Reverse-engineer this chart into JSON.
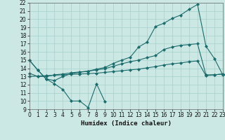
{
  "title": "",
  "xlabel": "Humidex (Indice chaleur)",
  "bg_color": "#cce8e5",
  "grid_color": "#aad4d0",
  "line_color": "#1a6b6b",
  "xlim": [
    0,
    23
  ],
  "ylim": [
    9,
    22
  ],
  "xticks": [
    0,
    1,
    2,
    3,
    4,
    5,
    6,
    7,
    8,
    9,
    10,
    11,
    12,
    13,
    14,
    15,
    16,
    17,
    18,
    19,
    20,
    21,
    22,
    23
  ],
  "yticks": [
    9,
    10,
    11,
    12,
    13,
    14,
    15,
    16,
    17,
    18,
    19,
    20,
    21,
    22
  ],
  "s1_x": [
    0,
    1,
    2,
    3,
    4,
    5,
    6,
    7,
    8,
    9
  ],
  "s1_y": [
    15.0,
    13.8,
    12.7,
    12.1,
    11.4,
    10.0,
    10.0,
    9.2,
    12.1,
    9.9
  ],
  "s2_x": [
    0,
    1,
    2,
    3,
    4,
    5,
    6,
    7,
    8,
    9,
    10,
    11,
    12,
    13,
    14,
    15,
    16,
    17,
    18,
    19,
    20,
    21,
    22,
    23
  ],
  "s2_y": [
    15.0,
    13.8,
    12.7,
    12.5,
    13.0,
    13.35,
    13.5,
    13.65,
    13.9,
    14.1,
    14.6,
    15.0,
    15.35,
    16.6,
    17.2,
    19.1,
    19.5,
    20.1,
    20.5,
    21.2,
    21.8,
    16.7,
    15.2,
    13.2
  ],
  "s3_x": [
    0,
    1,
    2,
    3,
    4,
    5,
    6,
    7,
    8,
    9,
    10,
    11,
    12,
    13,
    14,
    15,
    16,
    17,
    18,
    19,
    20,
    21,
    22,
    23
  ],
  "s3_y": [
    13.4,
    13.0,
    13.0,
    13.2,
    13.3,
    13.45,
    13.55,
    13.65,
    13.8,
    13.95,
    14.25,
    14.55,
    14.8,
    15.0,
    15.3,
    15.55,
    16.3,
    16.6,
    16.8,
    16.9,
    17.0,
    13.2,
    13.2,
    13.3
  ],
  "s4_x": [
    0,
    1,
    2,
    3,
    4,
    5,
    6,
    7,
    8,
    9,
    10,
    11,
    12,
    13,
    14,
    15,
    16,
    17,
    18,
    19,
    20,
    21,
    22,
    23
  ],
  "s4_y": [
    13.0,
    13.05,
    13.1,
    13.15,
    13.2,
    13.25,
    13.3,
    13.35,
    13.4,
    13.5,
    13.6,
    13.7,
    13.8,
    13.9,
    14.05,
    14.2,
    14.4,
    14.55,
    14.65,
    14.8,
    14.9,
    13.1,
    13.2,
    13.3
  ],
  "tick_fontsize": 5.5,
  "xlabel_fontsize": 6.5,
  "marker_size": 2.2,
  "line_width": 0.8
}
